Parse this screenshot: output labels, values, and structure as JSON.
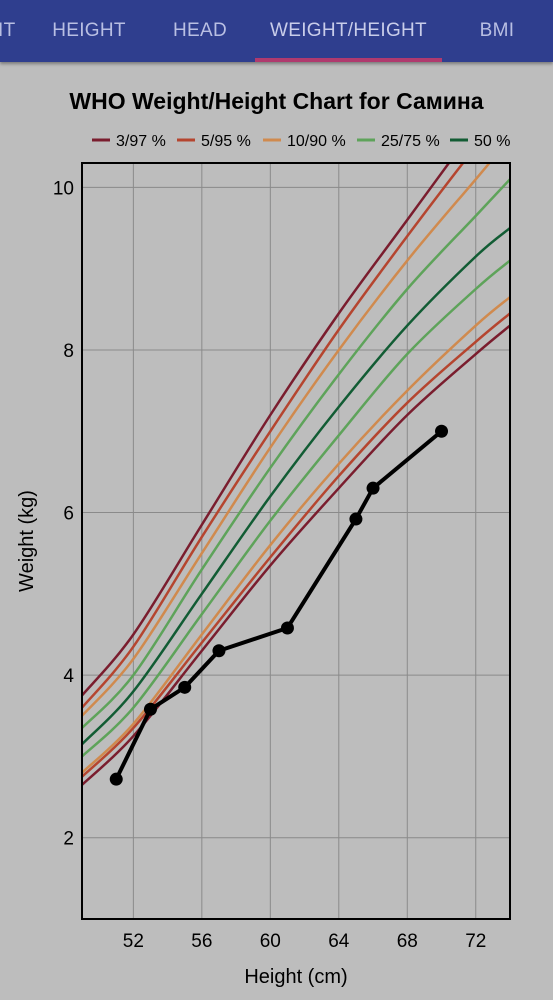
{
  "tabs": [
    {
      "label": "IT",
      "active": false
    },
    {
      "label": "HEIGHT",
      "active": false
    },
    {
      "label": "HEAD",
      "active": false
    },
    {
      "label": "WEIGHT/HEIGHT",
      "active": true
    },
    {
      "label": "BMI",
      "active": false
    }
  ],
  "colors": {
    "tabbar": "#2f3e8e",
    "indicator": "#b03a6e",
    "background": "#bdbdbd"
  },
  "chart_data": {
    "type": "line",
    "title": "WHO Weight/Height Chart for Самина",
    "xlabel": "Height (cm)",
    "ylabel": "Weight (kg)",
    "xlim": [
      49,
      74
    ],
    "ylim": [
      1,
      10.3
    ],
    "xticks": [
      52,
      56,
      60,
      64,
      68,
      72
    ],
    "yticks": [
      2,
      4,
      6,
      8,
      10
    ],
    "grid": true,
    "legend_position": "top",
    "legend": [
      {
        "label": "3/97 %",
        "color": "#7a1d2e"
      },
      {
        "label": "5/95 %",
        "color": "#b5452f"
      },
      {
        "label": "10/90 %",
        "color": "#d08a4e"
      },
      {
        "label": "25/75 %",
        "color": "#5ea35a"
      },
      {
        "label": "50 %",
        "color": "#125c34"
      }
    ],
    "x": [
      49,
      52,
      56,
      60,
      64,
      68,
      72,
      74
    ],
    "percentile_series": [
      {
        "name": "3/97 %",
        "color": "#7a1d2e",
        "values": [
          3.75,
          4.5,
          5.85,
          7.2,
          8.45,
          9.6,
          10.75,
          11.3
        ]
      },
      {
        "name": "5/95 %",
        "color": "#b5452f",
        "values": [
          3.6,
          4.35,
          5.7,
          7.0,
          8.25,
          9.4,
          10.5,
          11.0
        ]
      },
      {
        "name": "10/90 %",
        "color": "#d08a4e",
        "values": [
          3.5,
          4.2,
          5.5,
          6.8,
          8.0,
          9.1,
          10.1,
          10.6
        ]
      },
      {
        "name": "25/75 %",
        "color": "#5ea35a",
        "values": [
          3.35,
          4.0,
          5.3,
          6.55,
          7.7,
          8.75,
          9.65,
          10.1
        ]
      },
      {
        "name": "50 %",
        "color": "#125c34",
        "values": [
          3.15,
          3.8,
          5.0,
          6.2,
          7.3,
          8.3,
          9.15,
          9.5
        ]
      },
      {
        "name": "25/75 %",
        "color": "#5ea35a",
        "values": [
          3.0,
          3.6,
          4.75,
          5.9,
          6.95,
          7.95,
          8.75,
          9.1
        ]
      },
      {
        "name": "10/90 %",
        "color": "#d08a4e",
        "values": [
          2.8,
          3.4,
          4.5,
          5.6,
          6.6,
          7.5,
          8.3,
          8.65
        ]
      },
      {
        "name": "5/95 %",
        "color": "#b5452f",
        "values": [
          2.75,
          3.35,
          4.4,
          5.45,
          6.45,
          7.35,
          8.1,
          8.45
        ]
      },
      {
        "name": "3/97 %",
        "color": "#7a1d2e",
        "values": [
          2.65,
          3.25,
          4.3,
          5.35,
          6.3,
          7.2,
          7.95,
          8.3
        ]
      }
    ],
    "measurements": {
      "color": "#000000",
      "x": [
        51,
        53,
        55,
        57,
        61,
        65,
        66,
        70
      ],
      "y": [
        2.72,
        3.58,
        3.85,
        4.3,
        4.58,
        5.92,
        6.3,
        7.0
      ]
    }
  }
}
